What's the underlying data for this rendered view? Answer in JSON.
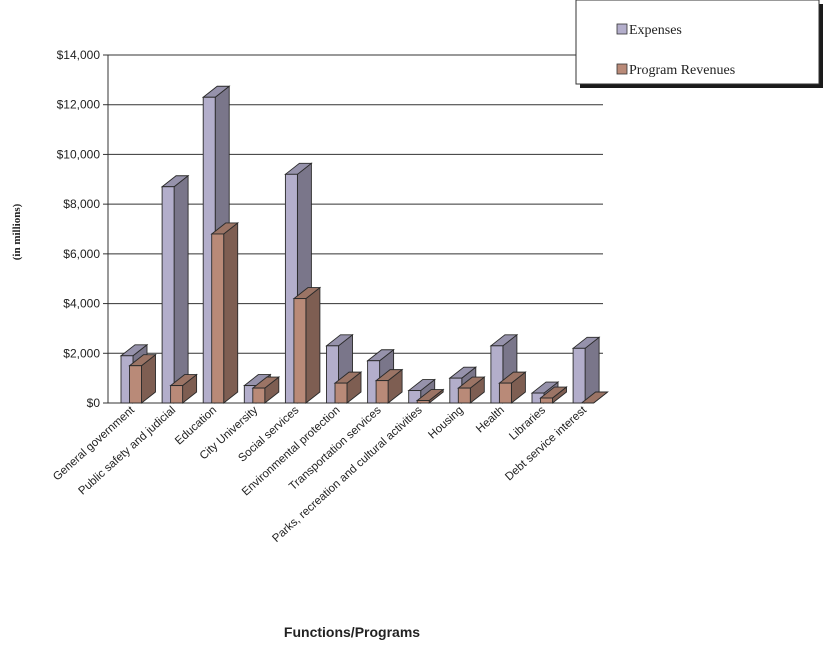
{
  "chart_data": {
    "type": "bar",
    "style": "3d-clustered-column",
    "xlabel": "Functions/Programs",
    "ylabel": "(in millions)",
    "ylim": [
      0,
      14000
    ],
    "y_ticks": [
      "$0",
      "$2,000",
      "$4,000",
      "$6,000",
      "$8,000",
      "$10,000",
      "$12,000",
      "$14,000"
    ],
    "grid": true,
    "legend_position": "top-right",
    "categories": [
      "General government",
      "Public safety and judicial",
      "Education",
      "City University",
      "Social services",
      "Environmental protection",
      "Transportation services",
      "Parks, recreation and cultural activities",
      "Housing",
      "Health",
      "Libraries",
      "Debt service interest"
    ],
    "series": [
      {
        "name": "Expenses",
        "color": "#b3aecb",
        "values": [
          1900,
          8700,
          12300,
          700,
          9200,
          2300,
          1700,
          500,
          1000,
          2300,
          400,
          2200
        ]
      },
      {
        "name": "Program Revenues",
        "color": "#b98a78",
        "values": [
          1500,
          700,
          6800,
          600,
          4200,
          800,
          900,
          100,
          600,
          800,
          200,
          0
        ]
      }
    ]
  }
}
